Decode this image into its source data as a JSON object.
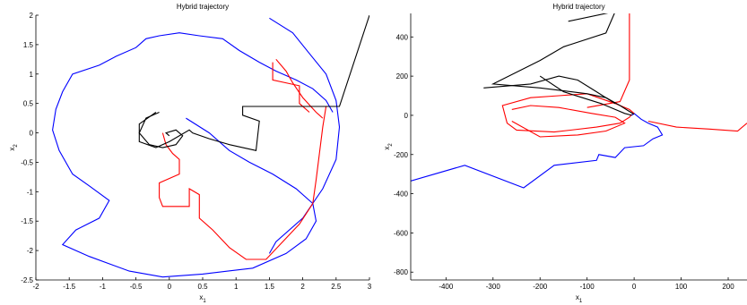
{
  "chart_data": [
    {
      "type": "line",
      "title": "Hybrid trajectory",
      "xlabel": "x",
      "xlabel_sub": "1",
      "ylabel": "x",
      "ylabel_sub": "2",
      "xlim": [
        -2,
        3
      ],
      "ylim": [
        -2.5,
        2
      ],
      "xticks": [
        "-2",
        "-1.5",
        "-1",
        "-0.5",
        "0",
        "0.5",
        "1",
        "1.5",
        "2",
        "2.5",
        "3"
      ],
      "xtick_values": [
        -2,
        -1.5,
        -1,
        -0.5,
        0,
        0.5,
        1,
        1.5,
        2,
        2.5,
        3
      ],
      "yticks": [
        "-2.5",
        "-2",
        "-1.5",
        "-1",
        "-0.5",
        "0",
        "0.5",
        "1",
        "1.5",
        "2"
      ],
      "ytick_values": [
        -2.5,
        -2,
        -1.5,
        -1,
        -0.5,
        0,
        0.5,
        1,
        1.5,
        2
      ],
      "grid": false,
      "colors": {
        "blue": "#0000ff",
        "red": "#ff0000",
        "black": "#000000"
      },
      "series": [
        {
          "color": "blue",
          "points": [
            [
              0.25,
              0.25
            ],
            [
              0.6,
              0.0
            ],
            [
              0.9,
              -0.3
            ],
            [
              1.2,
              -0.5
            ],
            [
              1.55,
              -0.7
            ],
            [
              1.9,
              -0.95
            ],
            [
              2.15,
              -1.2
            ],
            [
              2.2,
              -1.5
            ],
            [
              2.05,
              -1.8
            ],
            [
              1.75,
              -2.05
            ],
            [
              1.25,
              -2.3
            ],
            [
              0.5,
              -2.4
            ],
            [
              -0.1,
              -2.45
            ],
            [
              -0.6,
              -2.35
            ],
            [
              -1.2,
              -2.1
            ],
            [
              -1.6,
              -1.9
            ],
            [
              -1.4,
              -1.65
            ],
            [
              -1.05,
              -1.45
            ],
            [
              -0.9,
              -1.15
            ],
            [
              -1.2,
              -0.9
            ],
            [
              -1.45,
              -0.7
            ],
            [
              -1.65,
              -0.3
            ],
            [
              -1.75,
              0.05
            ],
            [
              -1.7,
              0.4
            ],
            [
              -1.6,
              0.7
            ],
            [
              -1.45,
              1.0
            ],
            [
              -1.05,
              1.15
            ],
            [
              -0.8,
              1.3
            ],
            [
              -0.5,
              1.45
            ],
            [
              -0.35,
              1.6
            ],
            [
              -0.15,
              1.65
            ],
            [
              0.15,
              1.7
            ],
            [
              0.45,
              1.65
            ],
            [
              0.8,
              1.6
            ],
            [
              1.05,
              1.4
            ],
            [
              1.35,
              1.2
            ],
            [
              1.6,
              1.05
            ],
            [
              1.9,
              0.9
            ],
            [
              2.15,
              0.75
            ],
            [
              2.35,
              0.55
            ],
            [
              2.45,
              0.35
            ]
          ]
        },
        {
          "color": "blue",
          "points": [
            [
              1.5,
              1.95
            ],
            [
              1.85,
              1.7
            ],
            [
              2.1,
              1.35
            ],
            [
              2.35,
              1.0
            ],
            [
              2.5,
              0.55
            ],
            [
              2.55,
              0.1
            ],
            [
              2.5,
              -0.45
            ],
            [
              2.3,
              -0.95
            ],
            [
              2.0,
              -1.45
            ],
            [
              1.6,
              -1.85
            ],
            [
              1.5,
              -2.05
            ]
          ]
        },
        {
          "color": "red",
          "points": [
            [
              -0.1,
              0.0
            ],
            [
              -0.05,
              -0.2
            ],
            [
              0.05,
              -0.35
            ],
            [
              0.15,
              -0.45
            ],
            [
              0.15,
              -0.7
            ],
            [
              -0.15,
              -0.85
            ],
            [
              -0.15,
              -1.1
            ],
            [
              -0.1,
              -1.25
            ],
            [
              0.3,
              -1.25
            ],
            [
              0.3,
              -0.95
            ],
            [
              0.45,
              -1.05
            ],
            [
              0.45,
              -1.45
            ],
            [
              0.65,
              -1.65
            ],
            [
              0.9,
              -1.95
            ],
            [
              1.15,
              -2.15
            ],
            [
              1.45,
              -2.15
            ],
            [
              1.7,
              -1.85
            ],
            [
              1.95,
              -1.55
            ],
            [
              2.15,
              -1.2
            ],
            [
              2.2,
              -0.8
            ],
            [
              2.25,
              -0.35
            ],
            [
              2.3,
              0.1
            ],
            [
              2.35,
              0.45
            ]
          ]
        },
        {
          "color": "red",
          "points": [
            [
              1.6,
              1.25
            ],
            [
              1.75,
              1.05
            ],
            [
              1.85,
              0.85
            ],
            [
              2.0,
              0.6
            ],
            [
              2.2,
              0.35
            ],
            [
              2.3,
              0.25
            ]
          ]
        },
        {
          "color": "red",
          "points": [
            [
              1.55,
              1.2
            ],
            [
              1.55,
              0.9
            ],
            [
              1.95,
              0.8
            ],
            [
              1.95,
              0.5
            ],
            [
              2.1,
              0.35
            ]
          ]
        },
        {
          "color": "black",
          "points": [
            [
              -0.2,
              0.35
            ],
            [
              -0.45,
              0.15
            ],
            [
              -0.45,
              -0.15
            ],
            [
              -0.2,
              -0.25
            ],
            [
              0.0,
              -0.15
            ],
            [
              0.3,
              0.05
            ],
            [
              0.35,
              0.0
            ],
            [
              0.6,
              -0.1
            ],
            [
              0.9,
              -0.2
            ],
            [
              1.3,
              -0.3
            ],
            [
              1.35,
              0.2
            ],
            [
              1.1,
              0.3
            ],
            [
              1.1,
              0.45
            ],
            [
              2.55,
              0.45
            ],
            [
              3.0,
              2.0
            ]
          ]
        },
        {
          "color": "black",
          "points": [
            [
              -0.15,
              0.35
            ],
            [
              -0.35,
              0.25
            ],
            [
              -0.45,
              0.0
            ],
            [
              -0.3,
              -0.2
            ],
            [
              -0.1,
              -0.25
            ],
            [
              0.1,
              -0.2
            ],
            [
              0.2,
              -0.05
            ],
            [
              0.1,
              0.05
            ],
            [
              -0.05,
              0.0
            ],
            [
              0.0,
              -0.05
            ]
          ]
        }
      ]
    },
    {
      "type": "line",
      "title": "Hybrid trajectory",
      "xlabel": "x",
      "xlabel_sub": "1",
      "ylabel": "x",
      "ylabel_sub": "2",
      "xlim": [
        -475,
        240
      ],
      "ylim": [
        -840,
        520
      ],
      "xticks": [
        "-400",
        "-300",
        "-200",
        "-100",
        "0",
        "100",
        "200"
      ],
      "xtick_values": [
        -400,
        -300,
        -200,
        -100,
        0,
        100,
        200
      ],
      "yticks": [
        "-800",
        "-600",
        "-400",
        "-200",
        "0",
        "200",
        "400"
      ],
      "ytick_values": [
        -800,
        -600,
        -400,
        -200,
        0,
        200,
        400
      ],
      "grid": false,
      "colors": {
        "blue": "#0000ff",
        "red": "#ff0000",
        "black": "#000000"
      },
      "series": [
        {
          "color": "blue",
          "points": [
            [
              -475,
              -335
            ],
            [
              -360,
              -255
            ],
            [
              -235,
              -370
            ],
            [
              -170,
              -255
            ],
            [
              -80,
              -230
            ],
            [
              -75,
              -200
            ],
            [
              -40,
              -215
            ],
            [
              -20,
              -165
            ],
            [
              20,
              -155
            ],
            [
              40,
              -120
            ],
            [
              60,
              -100
            ],
            [
              50,
              -60
            ],
            [
              30,
              -40
            ],
            [
              15,
              -20
            ],
            [
              5,
              0
            ],
            [
              0,
              10
            ],
            [
              -5,
              0
            ]
          ]
        },
        {
          "color": "red",
          "points": [
            [
              -5,
              5
            ],
            [
              -10,
              -10
            ],
            [
              -30,
              -40
            ],
            [
              -80,
              -60
            ],
            [
              -170,
              -85
            ],
            [
              -250,
              -75
            ],
            [
              -270,
              -40
            ],
            [
              -280,
              50
            ],
            [
              -220,
              90
            ],
            [
              -160,
              100
            ],
            [
              -100,
              110
            ],
            [
              -40,
              60
            ],
            [
              -10,
              30
            ],
            [
              0,
              10
            ]
          ]
        },
        {
          "color": "red",
          "points": [
            [
              -260,
              -30
            ],
            [
              -200,
              -110
            ],
            [
              -120,
              -100
            ],
            [
              -60,
              -80
            ],
            [
              -20,
              -40
            ],
            [
              -40,
              -10
            ],
            [
              -90,
              10
            ],
            [
              -160,
              40
            ],
            [
              -220,
              50
            ],
            [
              -260,
              30
            ]
          ]
        },
        {
          "color": "red",
          "points": [
            [
              -100,
              40
            ],
            [
              -30,
              70
            ],
            [
              -10,
              180
            ],
            [
              -10,
              520
            ]
          ]
        },
        {
          "color": "red",
          "points": [
            [
              30,
              -30
            ],
            [
              90,
              -60
            ],
            [
              160,
              -70
            ],
            [
              220,
              -80
            ],
            [
              240,
              -40
            ]
          ]
        },
        {
          "color": "black",
          "points": [
            [
              -140,
              480
            ],
            [
              -40,
              530
            ],
            [
              -60,
              420
            ],
            [
              -150,
              350
            ],
            [
              -200,
              280
            ],
            [
              -300,
              160
            ],
            [
              -200,
              140
            ],
            [
              -100,
              110
            ],
            [
              -60,
              90
            ],
            [
              -30,
              50
            ],
            [
              -10,
              20
            ],
            [
              0,
              5
            ]
          ]
        },
        {
          "color": "black",
          "points": [
            [
              -200,
              200
            ],
            [
              -150,
              120
            ],
            [
              -110,
              90
            ],
            [
              -70,
              60
            ],
            [
              -40,
              30
            ],
            [
              -20,
              10
            ],
            [
              -5,
              0
            ]
          ]
        },
        {
          "color": "black",
          "points": [
            [
              -320,
              140
            ],
            [
              -220,
              160
            ],
            [
              -160,
              200
            ],
            [
              -120,
              180
            ],
            [
              -80,
              120
            ],
            [
              -40,
              60
            ]
          ]
        }
      ]
    }
  ]
}
